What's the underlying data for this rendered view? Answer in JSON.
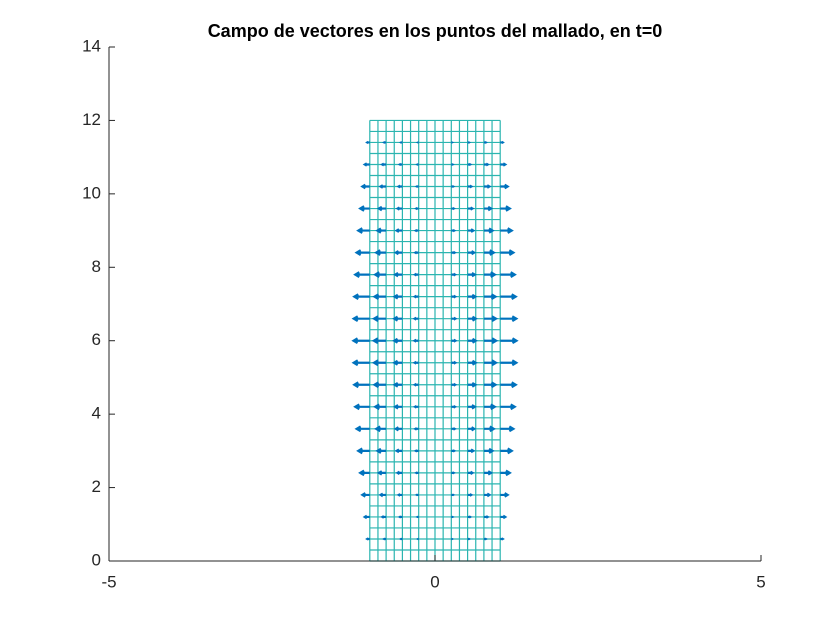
{
  "chart_data": {
    "type": "quiver",
    "title": "Campo de vectores en los puntos del mallado, en t=0",
    "xlim": [
      -5,
      5
    ],
    "xticks": [
      -5,
      0,
      5
    ],
    "ylim": [
      0,
      14
    ],
    "yticks": [
      0,
      2,
      4,
      6,
      8,
      10,
      12,
      14
    ],
    "mesh_color": "#2bb5b0",
    "mesh_x": [
      -1,
      -0.875,
      -0.75,
      -0.625,
      -0.5,
      -0.375,
      -0.25,
      -0.125,
      0,
      0.125,
      0.25,
      0.375,
      0.5,
      0.625,
      0.75,
      0.875,
      1
    ],
    "mesh_y": [
      0,
      0.3,
      0.6,
      0.9,
      1.2,
      1.5,
      1.8,
      2.1,
      2.4,
      2.7,
      3,
      3.3,
      3.6,
      3.9,
      4.2,
      4.5,
      4.8,
      5.1,
      5.4,
      5.7,
      6,
      6.3,
      6.6,
      6.9,
      7.2,
      7.5,
      7.8,
      8.1,
      8.4,
      8.7,
      9,
      9.3,
      9.6,
      9.9,
      10.2,
      10.5,
      10.8,
      11.1,
      11.4,
      11.7,
      12
    ],
    "color": "#0072bd",
    "quiver_x": [
      -1,
      -0.75,
      -0.5,
      -0.25,
      0,
      0.25,
      0.5,
      0.75,
      1
    ],
    "quiver_y": [
      0,
      0.6,
      1.2,
      1.8,
      2.4,
      3,
      3.6,
      4.2,
      4.8,
      5.4,
      6,
      6.6,
      7.2,
      7.8,
      8.4,
      9,
      9.6,
      10.2,
      10.8,
      11.4,
      12
    ],
    "u": [
      [
        0,
        0,
        0,
        0,
        0,
        0,
        0,
        0,
        0
      ],
      [
        -0.039,
        -0.029,
        -0.02,
        -0.01,
        0,
        0.01,
        0.02,
        0.029,
        0.039
      ],
      [
        -0.077,
        -0.058,
        -0.039,
        -0.019,
        0,
        0.019,
        0.039,
        0.058,
        0.077
      ],
      [
        -0.114,
        -0.085,
        -0.057,
        -0.028,
        0,
        0.028,
        0.057,
        0.085,
        0.114
      ],
      [
        -0.147,
        -0.11,
        -0.074,
        -0.037,
        0,
        0.037,
        0.074,
        0.11,
        0.147
      ],
      [
        -0.177,
        -0.133,
        -0.088,
        -0.044,
        0,
        0.044,
        0.088,
        0.133,
        0.177
      ],
      [
        -0.202,
        -0.152,
        -0.101,
        -0.051,
        0,
        0.051,
        0.101,
        0.152,
        0.202
      ],
      [
        -0.223,
        -0.167,
        -0.111,
        -0.056,
        0,
        0.056,
        0.111,
        0.167,
        0.223
      ],
      [
        -0.238,
        -0.178,
        -0.119,
        -0.059,
        0,
        0.059,
        0.119,
        0.178,
        0.238
      ],
      [
        -0.247,
        -0.185,
        -0.124,
        -0.062,
        0,
        0.062,
        0.124,
        0.185,
        0.247
      ],
      [
        -0.25,
        -0.188,
        -0.125,
        -0.063,
        0,
        0.063,
        0.125,
        0.188,
        0.25
      ],
      [
        -0.247,
        -0.185,
        -0.124,
        -0.062,
        0,
        0.062,
        0.124,
        0.185,
        0.247
      ],
      [
        -0.238,
        -0.178,
        -0.119,
        -0.059,
        0,
        0.059,
        0.119,
        0.178,
        0.238
      ],
      [
        -0.223,
        -0.167,
        -0.111,
        -0.056,
        0,
        0.056,
        0.111,
        0.167,
        0.223
      ],
      [
        -0.202,
        -0.152,
        -0.101,
        -0.051,
        0,
        0.051,
        0.101,
        0.152,
        0.202
      ],
      [
        -0.177,
        -0.133,
        -0.088,
        -0.044,
        0,
        0.044,
        0.088,
        0.133,
        0.177
      ],
      [
        -0.147,
        -0.11,
        -0.074,
        -0.037,
        0,
        0.037,
        0.074,
        0.11,
        0.147
      ],
      [
        -0.114,
        -0.085,
        -0.057,
        -0.028,
        0,
        0.028,
        0.057,
        0.085,
        0.114
      ],
      [
        -0.077,
        -0.058,
        -0.039,
        -0.019,
        0,
        0.019,
        0.039,
        0.058,
        0.077
      ],
      [
        -0.039,
        -0.029,
        -0.02,
        -0.01,
        0,
        0.01,
        0.02,
        0.029,
        0.039
      ],
      [
        0,
        0,
        0,
        0,
        0,
        0,
        0,
        0,
        0
      ]
    ]
  }
}
